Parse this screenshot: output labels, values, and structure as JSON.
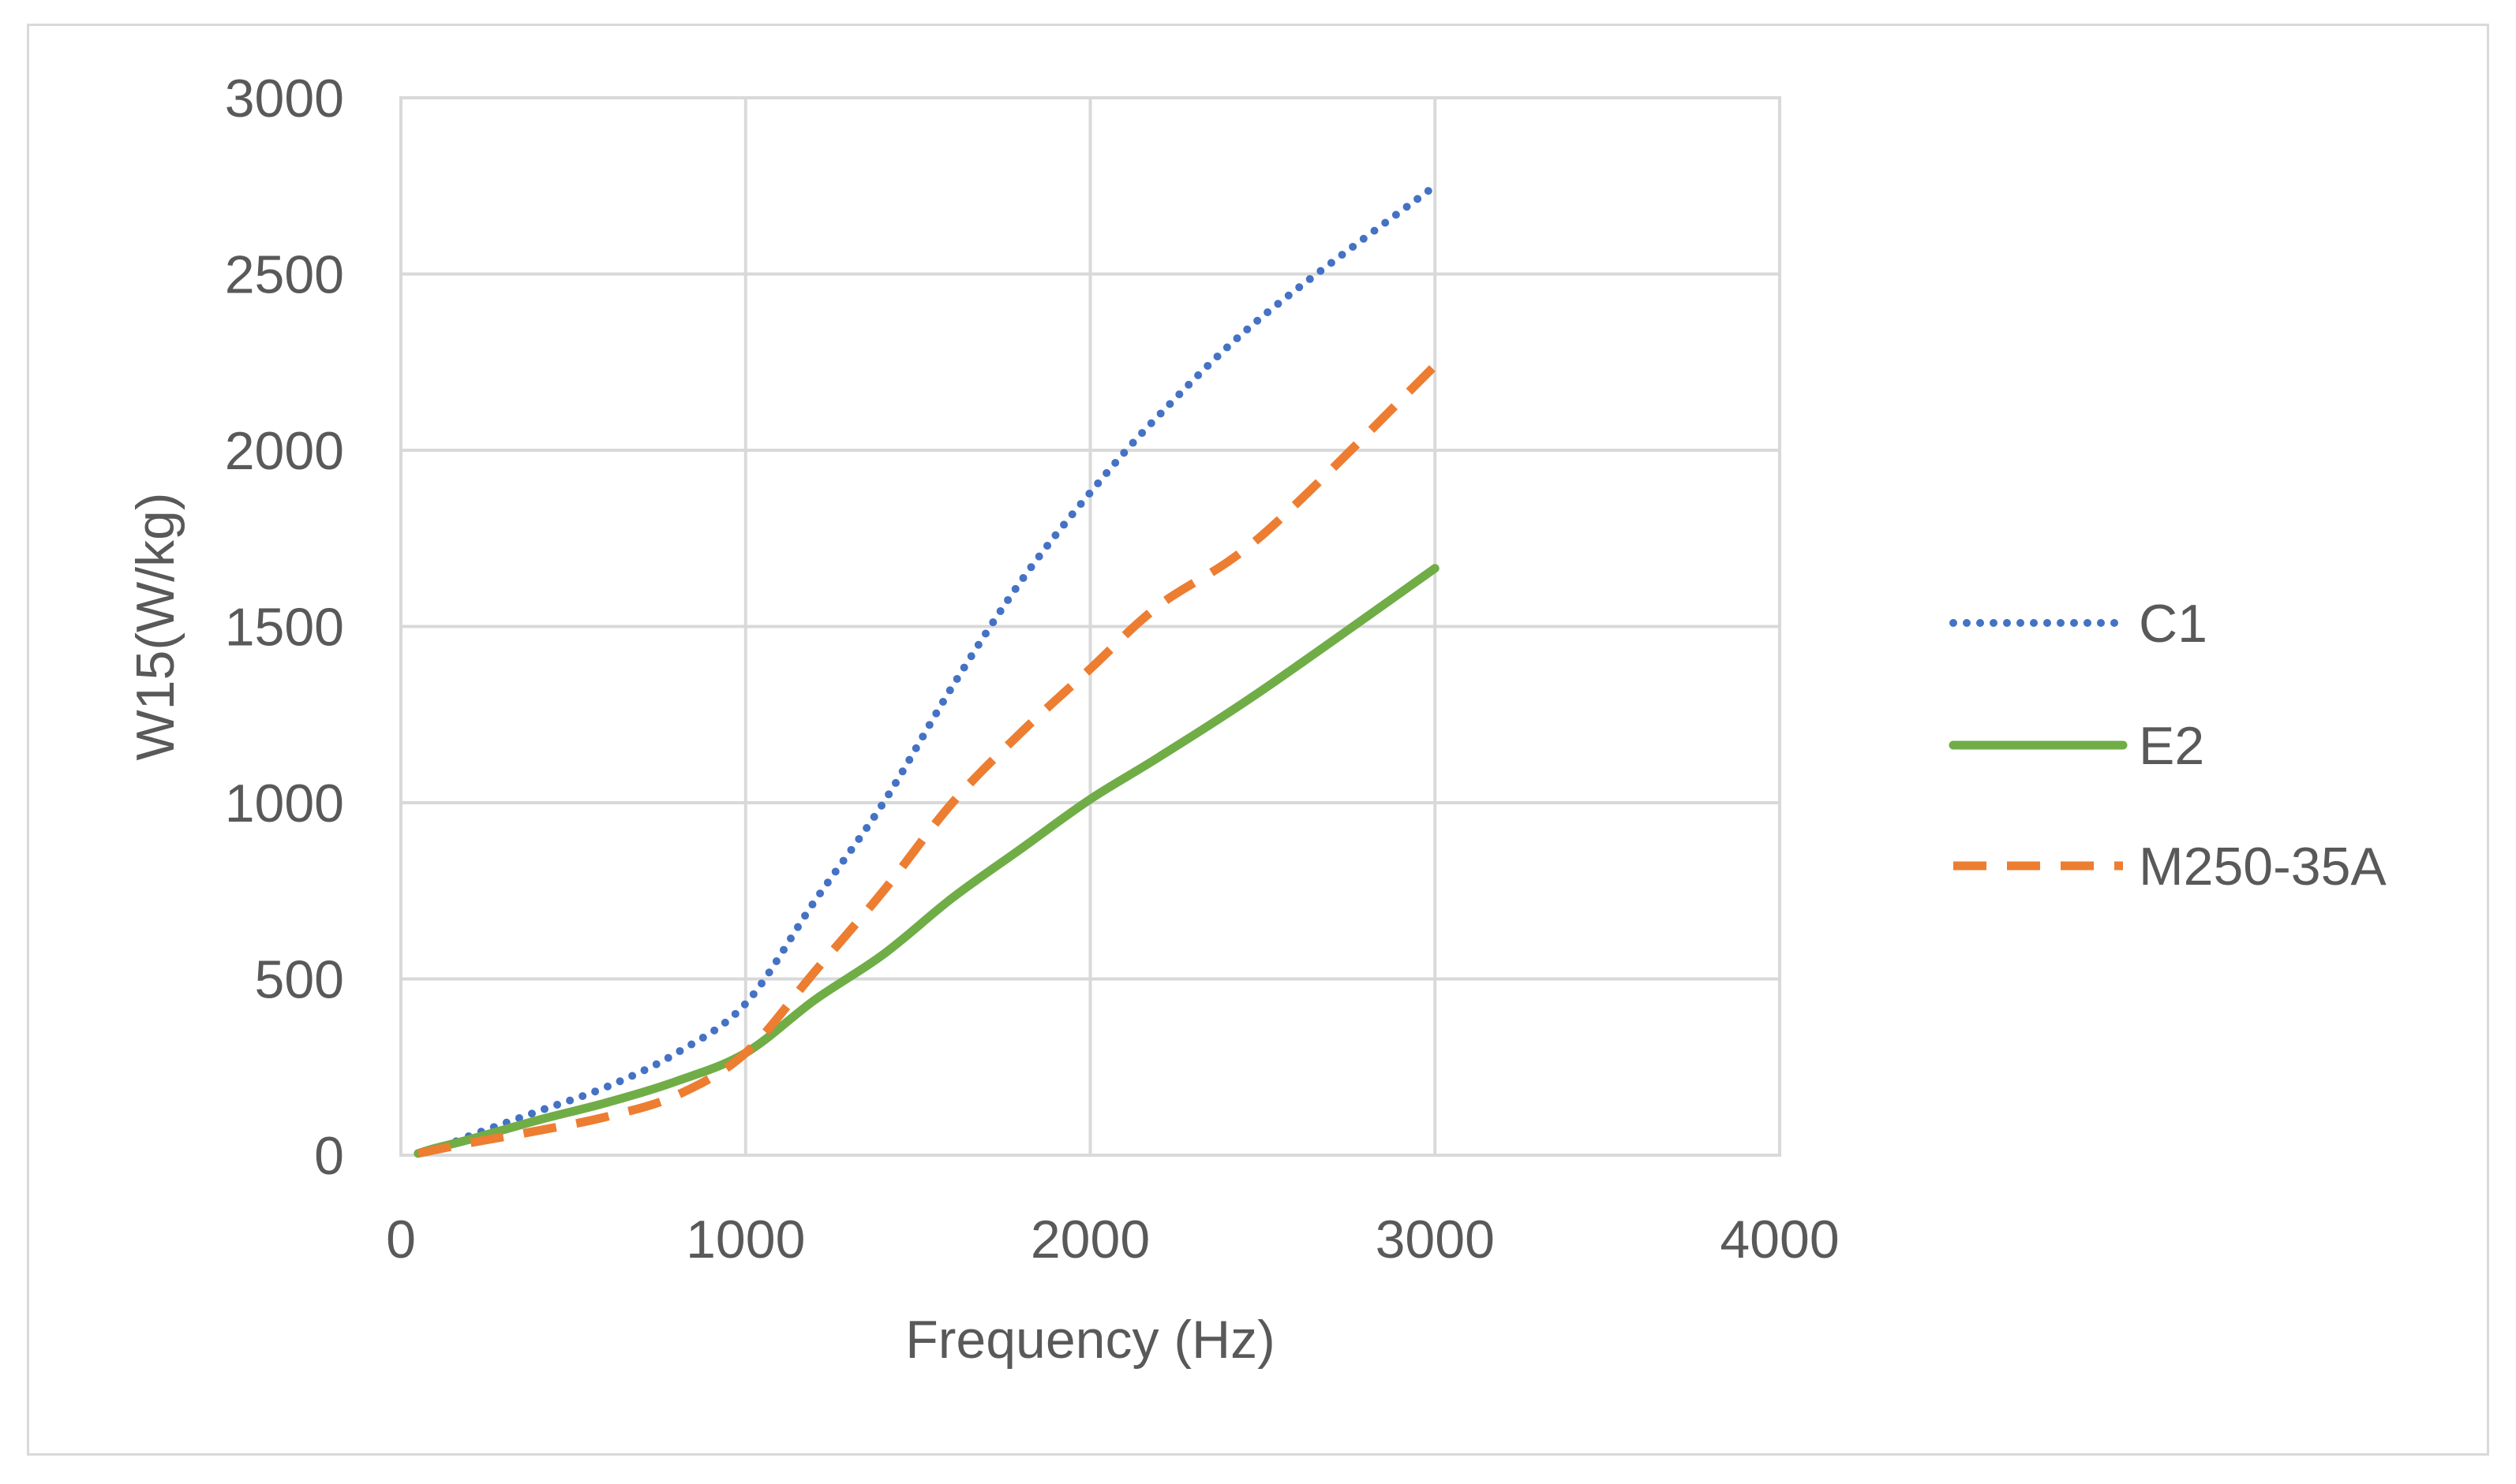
{
  "chart_data": {
    "type": "line",
    "title": "",
    "xlabel": "Frequency (Hz)",
    "ylabel": "W15(W/kg)",
    "xlim": [
      0,
      4000
    ],
    "ylim": [
      0,
      3000
    ],
    "xticks": [
      0,
      1000,
      2000,
      3000,
      4000
    ],
    "yticks": [
      0,
      500,
      1000,
      1500,
      2000,
      2500,
      3000
    ],
    "xtick_labels": [
      "0",
      "1000",
      "2000",
      "3000",
      "4000"
    ],
    "ytick_labels": [
      "0",
      "500",
      "1000",
      "1500",
      "2000",
      "2500",
      "3000"
    ],
    "grid": true,
    "legend_position": "right",
    "series": [
      {
        "name": "C1",
        "color": "#4472c4",
        "style": "dotted",
        "x": [
          50,
          100,
          200,
          400,
          600,
          800,
          1000,
          1200,
          1400,
          1600,
          1800,
          2000,
          2200,
          2500,
          3000
        ],
        "y": [
          5,
          15,
          55,
          125,
          195,
          290,
          430,
          720,
          1000,
          1330,
          1630,
          1880,
          2100,
          2380,
          2750
        ]
      },
      {
        "name": "E2",
        "color": "#70ad47",
        "style": "solid",
        "x": [
          50,
          100,
          200,
          400,
          600,
          800,
          1000,
          1200,
          1400,
          1600,
          1800,
          2000,
          2200,
          2500,
          3000
        ],
        "y": [
          5,
          20,
          45,
          100,
          150,
          210,
          290,
          440,
          570,
          730,
          870,
          1010,
          1130,
          1320,
          1665
        ]
      },
      {
        "name": "M250-35A",
        "color": "#ed7d31",
        "style": "dashed",
        "x": [
          50,
          100,
          200,
          400,
          600,
          800,
          1000,
          1200,
          1400,
          1600,
          1800,
          2000,
          2200,
          2500,
          3000
        ],
        "y": [
          5,
          15,
          35,
          70,
          110,
          170,
          290,
          520,
          750,
          1000,
          1200,
          1380,
          1560,
          1760,
          2240
        ]
      }
    ]
  }
}
